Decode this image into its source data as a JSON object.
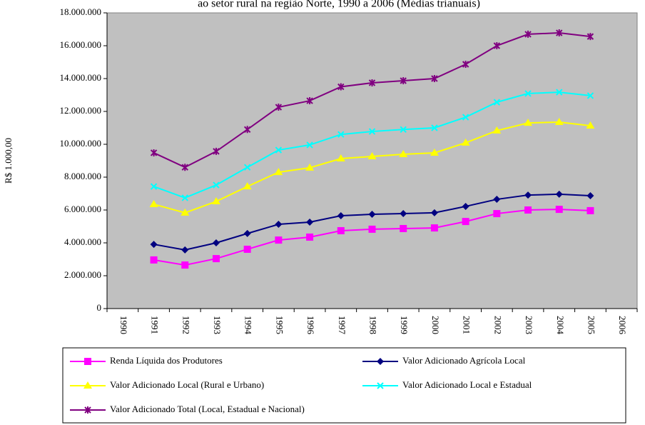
{
  "chart_data": {
    "type": "line",
    "title": "ao setor rural na região Norte, 1990 a 2006 (Médias trianuais)",
    "y_label": "R$ 1.000,00",
    "categories": [
      "1990",
      "1991",
      "1992",
      "1993",
      "1994",
      "1995",
      "1996",
      "1997",
      "1998",
      "1999",
      "2000",
      "2001",
      "2002",
      "2003",
      "2004",
      "2005",
      "2006"
    ],
    "ylim": [
      0,
      18000000
    ],
    "yticks": [
      0,
      {
        "value": 2000000,
        "label": "2.000.000"
      },
      {
        "value": 4000000,
        "label": "4.000.000"
      },
      {
        "value": 6000000,
        "label": "6.000.000"
      },
      {
        "value": 8000000,
        "label": "8.000.000"
      },
      {
        "value": 10000000,
        "label": "10.000.000"
      },
      {
        "value": 12000000,
        "label": "12.000.000"
      },
      {
        "value": 14000000,
        "label": "14.000.000"
      },
      {
        "value": 16000000,
        "label": "16.000.000"
      },
      {
        "value": 18000000,
        "label": "18.000.000"
      }
    ],
    "plot_background": "#c0c0c0",
    "series": [
      {
        "name": "Renda Líquida dos Produtores",
        "color": "#ff00ff",
        "marker": "square",
        "values": [
          null,
          2960000,
          2650000,
          3040000,
          3610000,
          4170000,
          4350000,
          4740000,
          4830000,
          4870000,
          4910000,
          5300000,
          5780000,
          6000000,
          6040000,
          5960000,
          null
        ]
      },
      {
        "name": "Valor Adicionado Agrícola Local",
        "color": "#000080",
        "marker": "diamond",
        "values": [
          null,
          3910000,
          3570000,
          4000000,
          4570000,
          5130000,
          5260000,
          5650000,
          5740000,
          5780000,
          5830000,
          6220000,
          6650000,
          6910000,
          6960000,
          6870000,
          null
        ]
      },
      {
        "name": "Valor Adicionado Local (Rural e Urbano)",
        "color": "#ffff00",
        "marker": "triangle",
        "values": [
          null,
          6350000,
          5830000,
          6520000,
          7430000,
          8300000,
          8570000,
          9130000,
          9260000,
          9390000,
          9480000,
          10090000,
          10830000,
          11300000,
          11350000,
          11130000,
          null
        ]
      },
      {
        "name": "Valor Adicionado Local e Estadual",
        "color": "#00ffff",
        "marker": "x",
        "values": [
          null,
          7430000,
          6740000,
          7520000,
          8600000,
          9650000,
          9960000,
          10600000,
          10780000,
          10900000,
          11000000,
          11650000,
          12560000,
          13090000,
          13170000,
          12960000,
          null
        ]
      },
      {
        "name": "Valor Adicionado Total (Local, Estadual e Nacional)",
        "color": "#800080",
        "marker": "asterisk",
        "values": [
          null,
          9480000,
          8600000,
          9570000,
          10900000,
          12260000,
          12650000,
          13500000,
          13740000,
          13870000,
          14000000,
          14870000,
          16000000,
          16700000,
          16780000,
          16560000,
          null
        ]
      }
    ]
  }
}
